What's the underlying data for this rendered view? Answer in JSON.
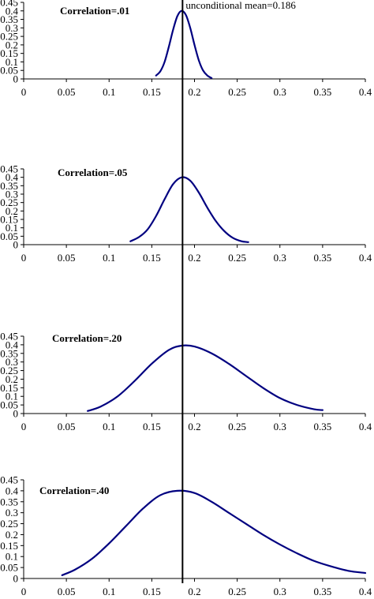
{
  "chart_data": {
    "type": "line",
    "annotation": "unconditional mean=0.186",
    "mean_value": 0.186,
    "line_color": "#000080",
    "x_ticks": [
      "0",
      "0.05",
      "0.1",
      "0.15",
      "0.2",
      "0.25",
      "0.3",
      "0.35",
      "0.4"
    ],
    "y_ticks": [
      "0",
      "0.05",
      "0.1",
      "0.15",
      "0.2",
      "0.25",
      "0.3",
      "0.35",
      "0.4",
      "0.45"
    ],
    "xlim": [
      0,
      0.4
    ],
    "ylim": [
      0,
      0.45
    ],
    "grid": false,
    "panels": [
      {
        "title": "Correlation=.01",
        "x": [
          0.155,
          0.16,
          0.165,
          0.17,
          0.175,
          0.18,
          0.185,
          0.19,
          0.195,
          0.2,
          0.205,
          0.21,
          0.215,
          0.22
        ],
        "y": [
          0.02,
          0.045,
          0.1,
          0.19,
          0.29,
          0.37,
          0.4,
          0.375,
          0.3,
          0.2,
          0.11,
          0.05,
          0.02,
          0.005
        ]
      },
      {
        "title": "Correlation=.05",
        "x": [
          0.125,
          0.135,
          0.145,
          0.155,
          0.165,
          0.175,
          0.185,
          0.195,
          0.205,
          0.215,
          0.225,
          0.235,
          0.245,
          0.255,
          0.263
        ],
        "y": [
          0.02,
          0.045,
          0.09,
          0.17,
          0.27,
          0.36,
          0.4,
          0.38,
          0.31,
          0.22,
          0.14,
          0.08,
          0.04,
          0.02,
          0.015
        ]
      },
      {
        "title": "Correlation=.20",
        "x": [
          0.075,
          0.09,
          0.11,
          0.13,
          0.15,
          0.17,
          0.185,
          0.2,
          0.22,
          0.24,
          0.26,
          0.28,
          0.3,
          0.32,
          0.34,
          0.35
        ],
        "y": [
          0.015,
          0.04,
          0.1,
          0.19,
          0.29,
          0.37,
          0.395,
          0.39,
          0.35,
          0.29,
          0.22,
          0.15,
          0.09,
          0.05,
          0.025,
          0.02
        ]
      },
      {
        "title": "Correlation=.40",
        "x": [
          0.045,
          0.06,
          0.08,
          0.1,
          0.12,
          0.14,
          0.16,
          0.18,
          0.2,
          0.22,
          0.24,
          0.26,
          0.28,
          0.3,
          0.32,
          0.34,
          0.36,
          0.38,
          0.4
        ],
        "y": [
          0.015,
          0.04,
          0.09,
          0.16,
          0.24,
          0.32,
          0.38,
          0.4,
          0.39,
          0.35,
          0.3,
          0.25,
          0.2,
          0.155,
          0.115,
          0.08,
          0.055,
          0.035,
          0.025
        ]
      }
    ]
  }
}
